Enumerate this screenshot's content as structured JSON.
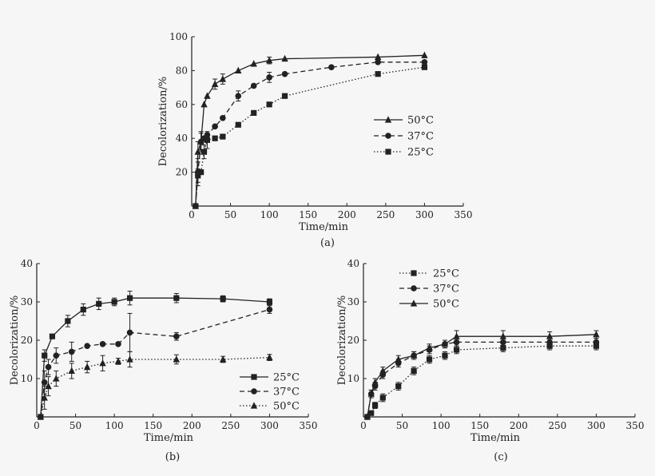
{
  "chart_data": [
    {
      "type": "line",
      "panel_label": "(a)",
      "xlabel": "Time/min",
      "ylabel": "Decolorization/%",
      "xlim": [
        0,
        350
      ],
      "ylim": [
        0,
        100
      ],
      "xticks": [
        0,
        50,
        100,
        150,
        200,
        250,
        300,
        350
      ],
      "yticks": [
        20,
        40,
        60,
        80,
        100
      ],
      "legend_position": "right",
      "series": [
        {
          "name": "50°C",
          "marker": "triangle",
          "dash": "solid",
          "x": [
            5,
            8,
            12,
            16,
            20,
            30,
            40,
            60,
            80,
            100,
            120,
            240,
            300
          ],
          "y": [
            0,
            32,
            38,
            60,
            65,
            72,
            75,
            80,
            84,
            86,
            87,
            88,
            89
          ],
          "err": [
            0,
            6,
            5,
            0,
            0,
            3,
            3,
            0,
            0,
            2,
            0,
            0,
            0
          ]
        },
        {
          "name": "37°C",
          "marker": "circle",
          "dash": "dashed",
          "x": [
            5,
            8,
            12,
            16,
            20,
            30,
            40,
            60,
            80,
            100,
            120,
            180,
            240,
            300
          ],
          "y": [
            0,
            20,
            38,
            40,
            42,
            47,
            52,
            65,
            71,
            76,
            78,
            82,
            85,
            85
          ],
          "err": [
            0,
            8,
            6,
            0,
            0,
            0,
            0,
            3,
            0,
            3,
            0,
            0,
            0,
            0
          ]
        },
        {
          "name": "25°C",
          "marker": "square",
          "dash": "dotted",
          "x": [
            5,
            8,
            12,
            16,
            20,
            30,
            40,
            60,
            80,
            100,
            120,
            240,
            300
          ],
          "y": [
            0,
            18,
            20,
            32,
            39,
            40,
            41,
            48,
            55,
            60,
            65,
            78,
            82
          ],
          "err": [
            0,
            4,
            0,
            4,
            5,
            0,
            0,
            0,
            0,
            0,
            0,
            0,
            0
          ]
        }
      ]
    },
    {
      "type": "line",
      "panel_label": "(b)",
      "xlabel": "Time/min",
      "ylabel": "Decolorization/%",
      "xlim": [
        0,
        350
      ],
      "ylim": [
        0,
        40
      ],
      "xticks": [
        0,
        50,
        100,
        150,
        200,
        250,
        300,
        350
      ],
      "yticks": [
        10,
        20,
        30,
        40
      ],
      "legend_position": "lower-right",
      "series": [
        {
          "name": "25°C",
          "marker": "square",
          "dash": "solid",
          "x": [
            5,
            10,
            20,
            40,
            60,
            80,
            100,
            120,
            180,
            240,
            300
          ],
          "y": [
            0,
            16,
            21,
            25,
            28,
            29.5,
            30,
            31,
            31,
            30.8,
            30
          ],
          "err": [
            0,
            1.5,
            0,
            1.5,
            1.5,
            1.5,
            1,
            1.8,
            1.2,
            0.8,
            0.8
          ]
        },
        {
          "name": "37°C",
          "marker": "circle",
          "dash": "dashed",
          "x": [
            5,
            10,
            15,
            25,
            45,
            65,
            85,
            105,
            120,
            180,
            300
          ],
          "y": [
            0,
            9,
            13,
            16,
            17,
            18.5,
            19,
            19,
            22,
            21,
            28
          ],
          "err": [
            0,
            3,
            2,
            2,
            2.5,
            0,
            0,
            0,
            5,
            1,
            1
          ]
        },
        {
          "name": "50°C",
          "marker": "triangle",
          "dash": "dotted",
          "x": [
            5,
            10,
            15,
            25,
            45,
            65,
            85,
            105,
            120,
            180,
            240,
            300
          ],
          "y": [
            0,
            5,
            8,
            10,
            12,
            13,
            14,
            14.5,
            15,
            15,
            15,
            15.5
          ],
          "err": [
            0,
            3,
            2.5,
            2,
            2,
            1.5,
            2,
            0.8,
            2,
            1.2,
            0.8,
            0.8
          ]
        }
      ]
    },
    {
      "type": "line",
      "panel_label": "(c)",
      "xlabel": "Time/min",
      "ylabel": "Decolorization/%",
      "xlim": [
        0,
        350
      ],
      "ylim": [
        0,
        40
      ],
      "xticks": [
        0,
        50,
        100,
        150,
        200,
        250,
        300,
        350
      ],
      "yticks": [
        10,
        20,
        30,
        40
      ],
      "legend_position": "top-left",
      "series": [
        {
          "name": "25°C",
          "marker": "square",
          "dash": "dotted",
          "x": [
            5,
            10,
            15,
            25,
            45,
            65,
            85,
            105,
            120,
            180,
            240,
            300
          ],
          "y": [
            0,
            1,
            3,
            5,
            8,
            12,
            15,
            16,
            17.5,
            18,
            18.5,
            18.5
          ],
          "err": [
            0,
            0.5,
            0.8,
            1,
            1,
            1,
            1,
            1,
            1,
            1,
            1,
            1
          ]
        },
        {
          "name": "37°C",
          "marker": "circle",
          "dash": "dashed",
          "x": [
            5,
            10,
            15,
            25,
            45,
            65,
            85,
            105,
            120,
            180,
            240,
            300
          ],
          "y": [
            0,
            6,
            8,
            11,
            14,
            16,
            17.5,
            19,
            19.5,
            19.5,
            19.5,
            19.5
          ],
          "err": [
            0,
            1,
            1,
            1,
            1,
            1,
            1,
            1,
            1,
            1,
            1,
            1
          ]
        },
        {
          "name": "50°C",
          "marker": "triangle",
          "dash": "solid",
          "x": [
            5,
            10,
            15,
            25,
            45,
            65,
            85,
            105,
            120,
            180,
            240,
            300
          ],
          "y": [
            0,
            6,
            9,
            12,
            15,
            16,
            18,
            19,
            21,
            21,
            21,
            21.5
          ],
          "err": [
            0,
            1,
            1,
            1,
            1,
            1,
            1,
            1,
            1.5,
            1.5,
            1.2,
            1
          ]
        }
      ]
    }
  ]
}
